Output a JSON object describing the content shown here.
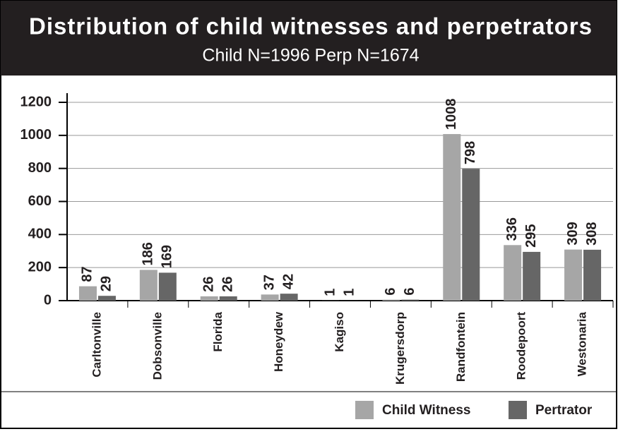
{
  "chart_data": {
    "type": "bar",
    "title": "Distribution of child witnesses and perpetrators",
    "subtitle": "Child N=1996  Perp N=1674",
    "categories": [
      "Carltonville",
      "Dobsonville",
      "Florida",
      "Honeydew",
      "Kagiso",
      "Krugersdorp",
      "Randfontein",
      "Roodepoort",
      "Westonaria"
    ],
    "series": [
      {
        "name": "Child Witness",
        "color": "#a6a6a6",
        "values": [
          87,
          186,
          26,
          37,
          1,
          6,
          1008,
          336,
          309
        ]
      },
      {
        "name": "Pertrator",
        "color": "#666666",
        "values": [
          29,
          169,
          26,
          42,
          1,
          6,
          798,
          295,
          308
        ]
      }
    ],
    "ylim": [
      0,
      1200
    ],
    "yticks": [
      0,
      200,
      400,
      600,
      800,
      1000,
      1200
    ],
    "grid": true,
    "legend": "bottom-right"
  }
}
